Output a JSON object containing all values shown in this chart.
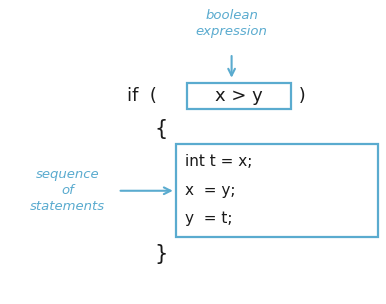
{
  "bg_color": "#ffffff",
  "blue": "#5aabcf",
  "dark": "#1a1a1a",
  "bool_expr_text": "boolean\nexpression",
  "seq_label": "sequence\nof\nstatements",
  "if_prefix": "if  ( ",
  "box_text": "x > y",
  "if_suffix": " )",
  "open_brace": "{",
  "close_brace": "}",
  "code_lines": [
    "int t = x;",
    "x  = y;",
    "y  = t;"
  ],
  "figsize": [
    3.86,
    3.04
  ],
  "dpi": 100
}
